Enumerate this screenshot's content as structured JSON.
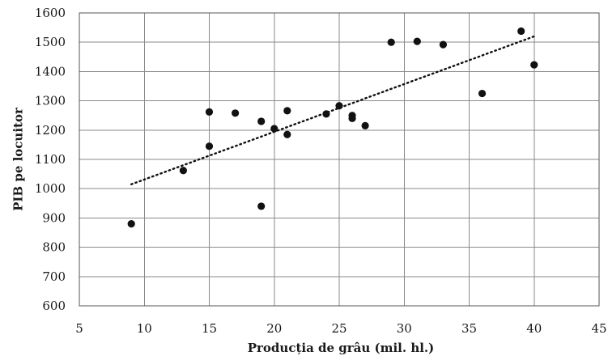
{
  "chart_data": {
    "type": "scatter",
    "title": "",
    "xlabel": "Producția de grâu (mil. hl.)",
    "ylabel": "PIB pe locuitor",
    "xlim": [
      5,
      45
    ],
    "ylim": [
      600,
      1600
    ],
    "x_ticks": [
      5,
      10,
      15,
      20,
      25,
      30,
      35,
      40,
      45
    ],
    "y_ticks": [
      600,
      700,
      800,
      900,
      1000,
      1100,
      1200,
      1300,
      1400,
      1500,
      1600
    ],
    "grid": true,
    "point_color": "#111111",
    "trendline": {
      "style": "dotted",
      "x": [
        9,
        40
      ],
      "y": [
        1015,
        1520
      ]
    },
    "points": [
      {
        "x": 9,
        "y": 880
      },
      {
        "x": 13,
        "y": 1062
      },
      {
        "x": 15,
        "y": 1262
      },
      {
        "x": 15,
        "y": 1145
      },
      {
        "x": 17,
        "y": 1258
      },
      {
        "x": 19,
        "y": 1230
      },
      {
        "x": 19,
        "y": 940
      },
      {
        "x": 20,
        "y": 1205
      },
      {
        "x": 21,
        "y": 1266
      },
      {
        "x": 21,
        "y": 1185
      },
      {
        "x": 24,
        "y": 1255
      },
      {
        "x": 25,
        "y": 1283
      },
      {
        "x": 26,
        "y": 1250
      },
      {
        "x": 26,
        "y": 1240
      },
      {
        "x": 27,
        "y": 1215
      },
      {
        "x": 29,
        "y": 1500
      },
      {
        "x": 31,
        "y": 1503
      },
      {
        "x": 33,
        "y": 1492
      },
      {
        "x": 36,
        "y": 1325
      },
      {
        "x": 39,
        "y": 1538
      },
      {
        "x": 40,
        "y": 1423
      }
    ]
  }
}
